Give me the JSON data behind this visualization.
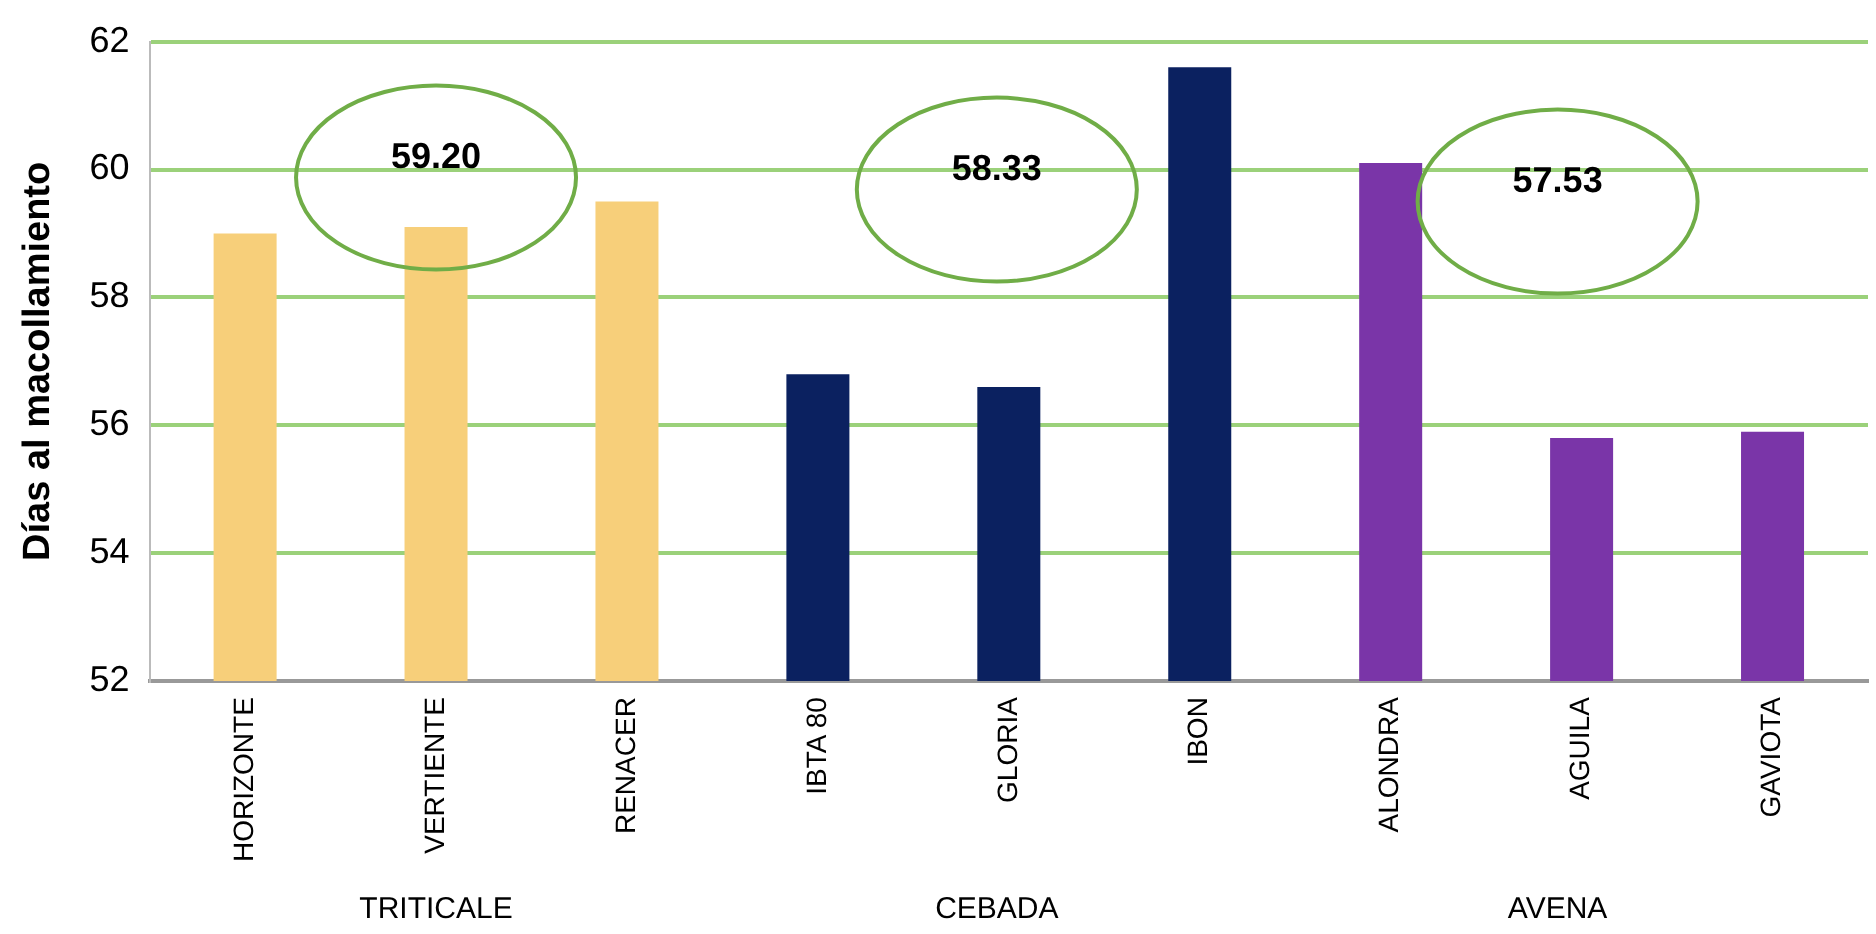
{
  "chart_data": {
    "type": "bar",
    "ylabel": "Días al macollamiento",
    "categories": [
      "HORIZONTE",
      "VERTIENTE",
      "RENACER",
      "IBTA 80",
      "GLORIA",
      "IBON",
      "ALONDRA",
      "AGUILA",
      "GAVIOTA"
    ],
    "values": [
      59.0,
      59.1,
      59.5,
      56.8,
      56.6,
      61.6,
      60.1,
      55.8,
      55.9
    ],
    "colors": [
      "#f7cf7a",
      "#f7cf7a",
      "#f7cf7a",
      "#0b2160",
      "#0b2160",
      "#0b2160",
      "#7a35a8",
      "#7a35a8",
      "#7a35a8"
    ],
    "ylim": [
      52,
      62
    ],
    "yticks": [
      52,
      54,
      56,
      58,
      60,
      62
    ],
    "grid": "y",
    "legend": false,
    "annotations": [
      "59.20",
      "58.33",
      "57.53",
      "TRITICALE",
      "CEBADA",
      "AVENA"
    ]
  }
}
